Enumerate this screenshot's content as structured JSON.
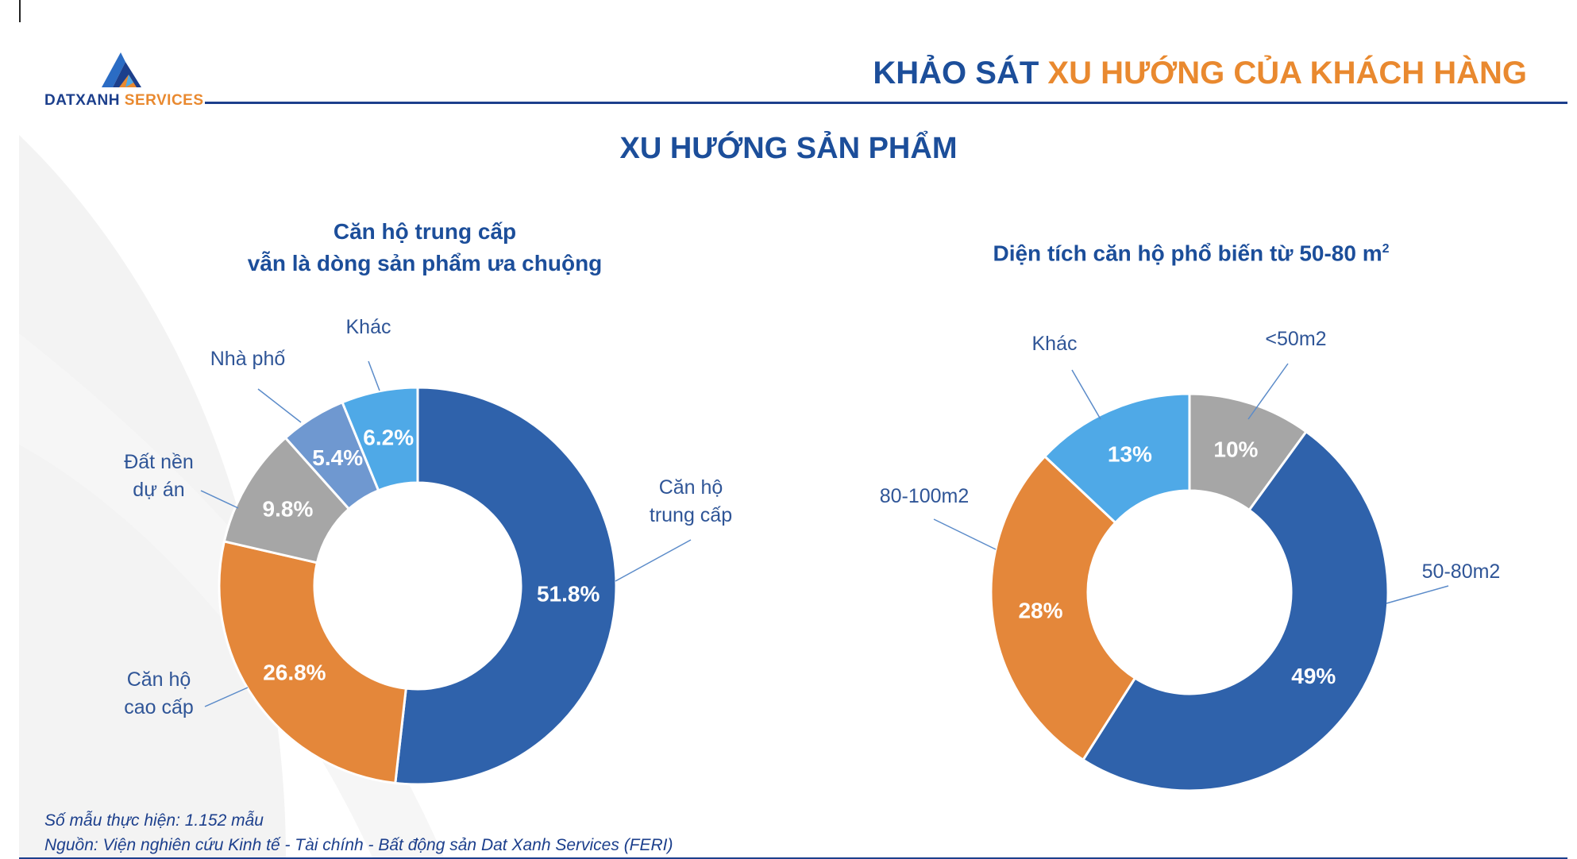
{
  "logo": {
    "brand_primary": "DATXANH",
    "brand_secondary": "SERVICES"
  },
  "header": {
    "title_part1": "KHẢO SÁT",
    "title_part2": "XU HƯỚNG CỦA KHÁCH HÀNG"
  },
  "section_title": "XU HƯỚNG SẢN PHẨM",
  "chart1_subtitle_line1": "Căn hộ trung cấp",
  "chart1_subtitle_line2": "vẫn là dòng sản phẩm ưa chuộng",
  "chart2_subtitle": "Diện tích căn hộ phổ biến từ 50-80 m",
  "chart2_subtitle_sup": "2",
  "footnotes": {
    "sample": "Số mẫu thực hiện: 1.152 mẫu",
    "source": "Nguồn: Viện nghiên cứu Kinh tế - Tài chính - Bất động sản Dat Xanh Services (FERI)"
  },
  "colors": {
    "blue_dark": "#2f62ab",
    "orange": "#e4873a",
    "gray": "#a6a6a6",
    "blue_mid": "#6f98d0",
    "blue_light": "#4fa9e7",
    "brand_navy": "#1c3f8c",
    "brand_orange": "#e9892f"
  },
  "chart_data": [
    {
      "type": "pie",
      "donut": true,
      "title": "Căn hộ trung cấp vẫn là dòng sản phẩm ưa chuộng",
      "slices": [
        {
          "label": [
            "Căn hộ",
            "trung cấp"
          ],
          "value": 51.8,
          "display": "51.8%",
          "color": "#2f62ab"
        },
        {
          "label": [
            "Căn hộ",
            "cao cấp"
          ],
          "value": 26.8,
          "display": "26.8%",
          "color": "#e4873a"
        },
        {
          "label": [
            "Đất nền",
            "dự án"
          ],
          "value": 9.8,
          "display": "9.8%",
          "color": "#a6a6a6"
        },
        {
          "label": [
            "Nhà phố"
          ],
          "value": 5.4,
          "display": "5.4%",
          "color": "#6f98d0"
        },
        {
          "label": [
            "Khác"
          ],
          "value": 6.2,
          "display": "6.2%",
          "color": "#4fa9e7"
        }
      ]
    },
    {
      "type": "pie",
      "donut": true,
      "title": "Diện tích căn hộ phổ biến từ 50-80 m²",
      "slices": [
        {
          "label": [
            "<50m2"
          ],
          "value": 10,
          "display": "10%",
          "color": "#a6a6a6"
        },
        {
          "label": [
            "50-80m2"
          ],
          "value": 49,
          "display": "49%",
          "color": "#2f62ab"
        },
        {
          "label": [
            "80-100m2"
          ],
          "value": 28,
          "display": "28%",
          "color": "#e4873a"
        },
        {
          "label": [
            "Khác"
          ],
          "value": 13,
          "display": "13%",
          "color": "#4fa9e7"
        }
      ]
    }
  ]
}
